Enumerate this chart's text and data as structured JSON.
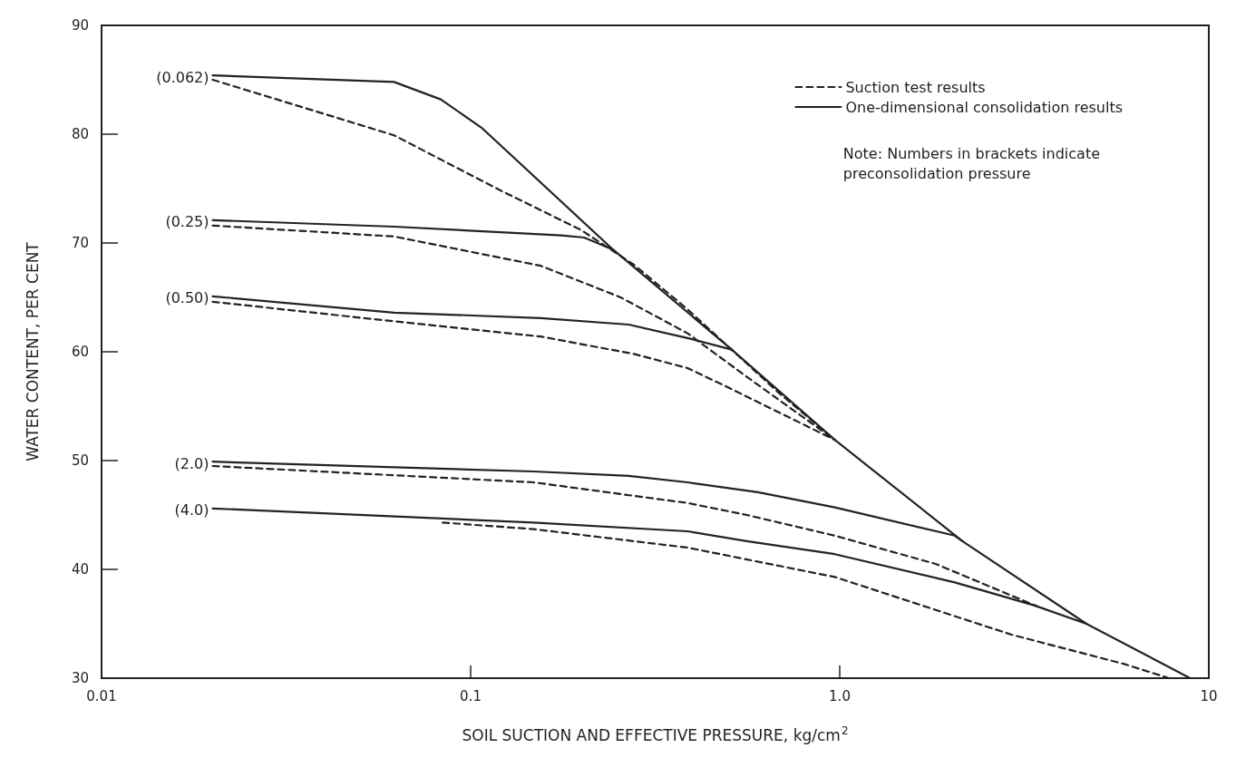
{
  "chart_data": {
    "type": "line",
    "xlabel": "SOIL SUCTION AND EFFECTIVE PRESSURE, kg/cm$^{2}$",
    "ylabel": "WATER CONTENT, PER CENT",
    "log": "x",
    "xlim": [
      0.01,
      10
    ],
    "xticks": [
      0.01,
      0.1,
      {
        "value": 1,
        "label": "1.0"
      },
      10
    ],
    "ylim": [
      30,
      90
    ],
    "yticks": [
      30,
      40,
      50,
      60,
      70,
      80,
      90
    ],
    "grid": false,
    "legend": "top right",
    "marker": "none",
    "series": [
      {
        "name": "Suction test results",
        "color": "#222222",
        "line_style": "dashed",
        "x": [
          0.02,
          0.062,
          0.121,
          0.199,
          0.277,
          0.387,
          0.68,
          0.97
        ],
        "values": [
          85.0,
          79.9,
          74.8,
          71.2,
          68.0,
          63.9,
          56.3,
          51.9
        ]
      },
      {
        "name": "One-dimensional consolidation results",
        "color": "#222222",
        "line_style": "solid",
        "x": [
          0.02,
          0.062,
          0.083,
          0.107,
          0.243,
          0.51,
          0.97,
          2.15,
          4.66,
          8.9
        ],
        "values": [
          85.4,
          84.8,
          83.2,
          80.6,
          69.4,
          60.2,
          51.9,
          42.6,
          35.0,
          30.0
        ]
      },
      {
        "color": "#222222",
        "line_style": "dashed",
        "x": [
          0.02,
          0.062,
          0.155,
          0.255,
          0.387,
          0.56,
          0.97
        ],
        "values": [
          71.6,
          70.6,
          67.9,
          65.0,
          61.7,
          57.7,
          51.9
        ]
      },
      {
        "color": "#222222",
        "line_style": "solid",
        "x": [
          0.02,
          0.062,
          0.176,
          0.203,
          0.243
        ],
        "values": [
          72.1,
          71.5,
          70.7,
          70.5,
          69.4
        ]
      },
      {
        "color": "#222222",
        "line_style": "dashed",
        "x": [
          0.02,
          0.062,
          0.155,
          0.277,
          0.387,
          0.5,
          0.97
        ],
        "values": [
          64.6,
          62.8,
          61.4,
          59.8,
          58.5,
          56.7,
          51.9
        ]
      },
      {
        "color": "#222222",
        "line_style": "solid",
        "x": [
          0.02,
          0.062,
          0.155,
          0.268,
          0.394,
          0.51
        ],
        "values": [
          65.1,
          63.6,
          63.1,
          62.5,
          61.2,
          60.2
        ]
      },
      {
        "color": "#222222",
        "line_style": "dashed",
        "x": [
          0.02,
          0.148,
          0.387,
          0.56,
          0.97,
          1.82,
          3.43
        ],
        "values": [
          49.5,
          48.0,
          46.1,
          45.0,
          43.1,
          40.5,
          36.6
        ]
      },
      {
        "color": "#222222",
        "line_style": "solid",
        "x": [
          0.02,
          0.148,
          0.268,
          0.387,
          0.6,
          0.97,
          2.05,
          2.15
        ],
        "values": [
          49.9,
          49.0,
          48.6,
          48.0,
          47.1,
          45.7,
          43.1,
          42.6
        ]
      },
      {
        "color": "#222222",
        "line_style": "dashed",
        "x": [
          0.084,
          0.148,
          0.387,
          0.97,
          2.92,
          5.9,
          7.8
        ],
        "values": [
          44.3,
          43.7,
          42.0,
          39.3,
          34.0,
          31.3,
          30.0
        ]
      },
      {
        "color": "#222222",
        "line_style": "solid",
        "x": [
          0.02,
          0.148,
          0.387,
          0.56,
          0.97,
          2.05,
          3.36,
          4.66
        ],
        "values": [
          45.6,
          44.3,
          43.5,
          42.6,
          41.4,
          38.8,
          36.7,
          35.0
        ]
      }
    ],
    "annotations": [
      "(0.062)",
      "(0.25)",
      "(0.50)",
      "(2.0)",
      "(4.0)",
      "Note: Numbers in brackets indicate\npreconsolidation pressure"
    ]
  }
}
